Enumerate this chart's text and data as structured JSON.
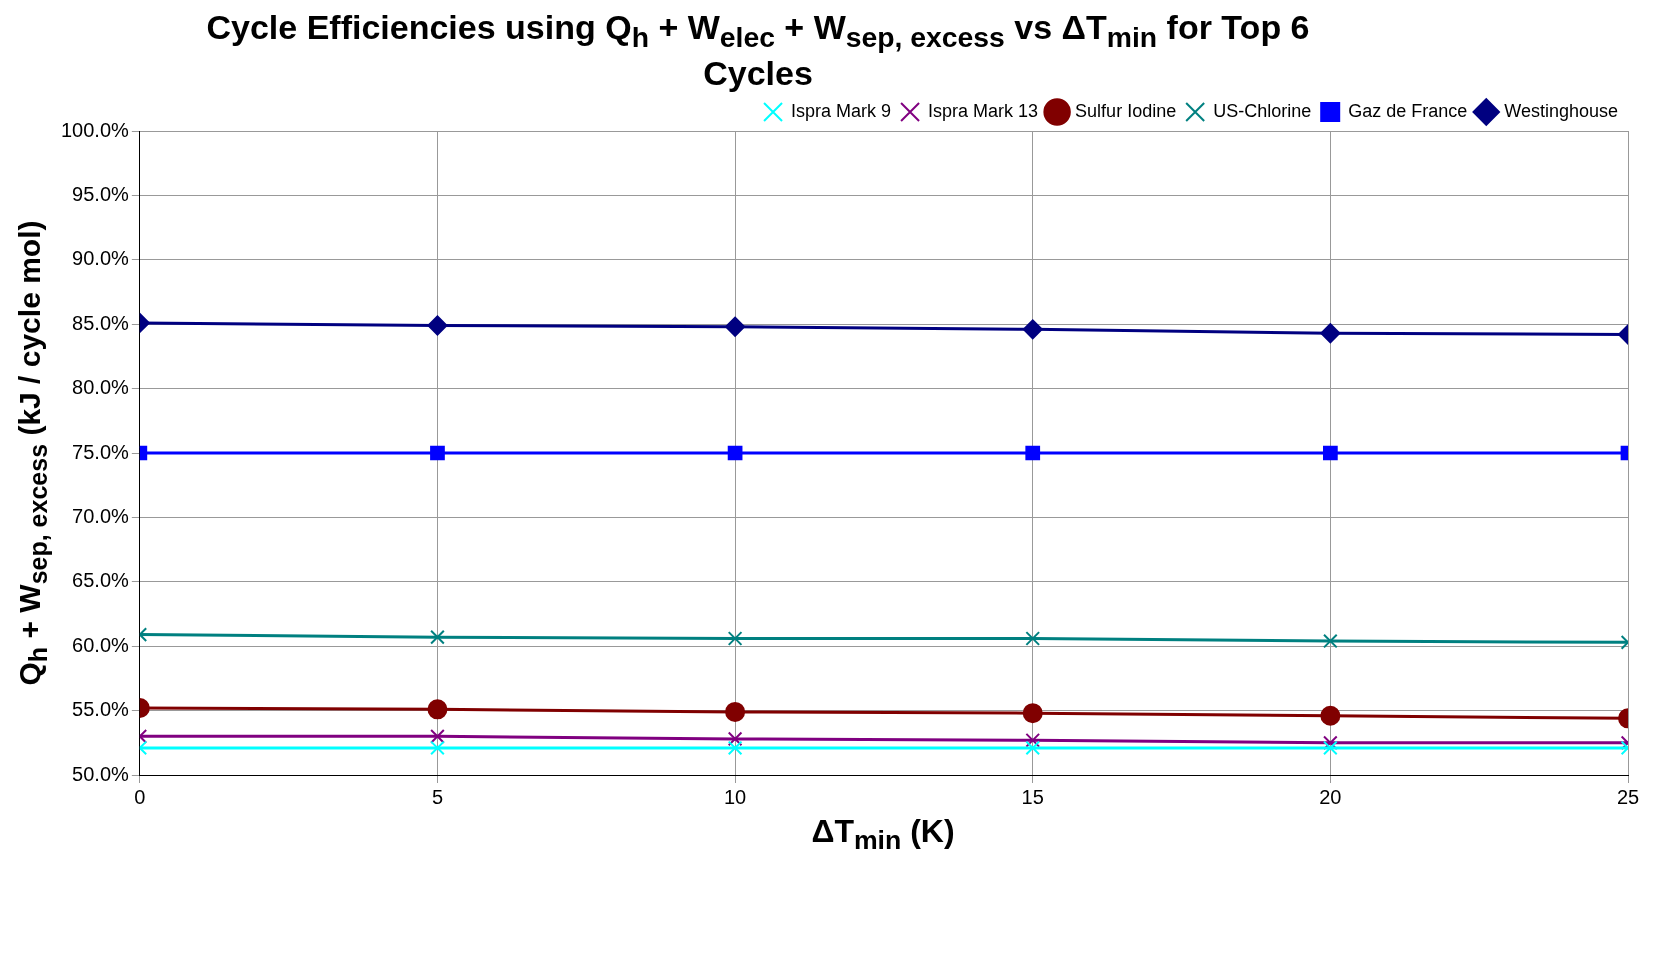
{
  "chart_data": {
    "type": "line",
    "title": "Cycle Efficiencies using Q$_{h}$ + W$_{elec}$ + W$_{sep, excess}$ vs ΔT$_{min}$ for Top 6 Cycles",
    "xlabel": "ΔT$_{min}$ (K)",
    "ylabel": "Q$_{h}$ + W$_{sep, excess}$ (kJ / cycle mol)",
    "x": [
      0,
      5,
      10,
      15,
      20,
      25
    ],
    "series": [
      {
        "name": "Ispra Mark 9",
        "color": "#00ffff",
        "marker": "cross",
        "values": [
          52.1,
          52.1,
          52.1,
          52.1,
          52.1,
          52.1
        ]
      },
      {
        "name": "Ispra Mark 13",
        "color": "#800080",
        "marker": "cross",
        "values": [
          53.0,
          53.0,
          52.8,
          52.7,
          52.5,
          52.5
        ]
      },
      {
        "name": "Sulfur Iodine",
        "color": "#800000",
        "marker": "circle",
        "values": [
          55.2,
          55.1,
          54.9,
          54.8,
          54.6,
          54.4
        ]
      },
      {
        "name": "US-Chlorine",
        "color": "#008080",
        "marker": "cross",
        "values": [
          60.9,
          60.7,
          60.6,
          60.6,
          60.4,
          60.3
        ]
      },
      {
        "name": "Gaz de France",
        "color": "#0000ff",
        "marker": "square",
        "values": [
          75.0,
          75.0,
          75.0,
          75.0,
          75.0,
          75.0
        ]
      },
      {
        "name": "Westinghouse",
        "color": "#000080",
        "marker": "diamond",
        "values": [
          85.1,
          84.9,
          84.8,
          84.6,
          84.3,
          84.2
        ]
      }
    ],
    "xlim": [
      0,
      25
    ],
    "xticks": [
      0,
      5,
      10,
      15,
      20,
      25
    ],
    "ylim": [
      50,
      100
    ],
    "yticks": [
      {
        "value": 50,
        "label": "50.0%"
      },
      {
        "value": 55,
        "label": "55.0%"
      },
      {
        "value": 60,
        "label": "60.0%"
      },
      {
        "value": 65,
        "label": "65.0%"
      },
      {
        "value": 70,
        "label": "70.0%"
      },
      {
        "value": 75,
        "label": "75.0%"
      },
      {
        "value": 80,
        "label": "80.0%"
      },
      {
        "value": 85,
        "label": "85.0%"
      },
      {
        "value": 90,
        "label": "90.0%"
      },
      {
        "value": 95,
        "label": "95.0%"
      },
      {
        "value": 100,
        "label": "100.0%"
      }
    ],
    "grid": true,
    "legend": "top right"
  }
}
